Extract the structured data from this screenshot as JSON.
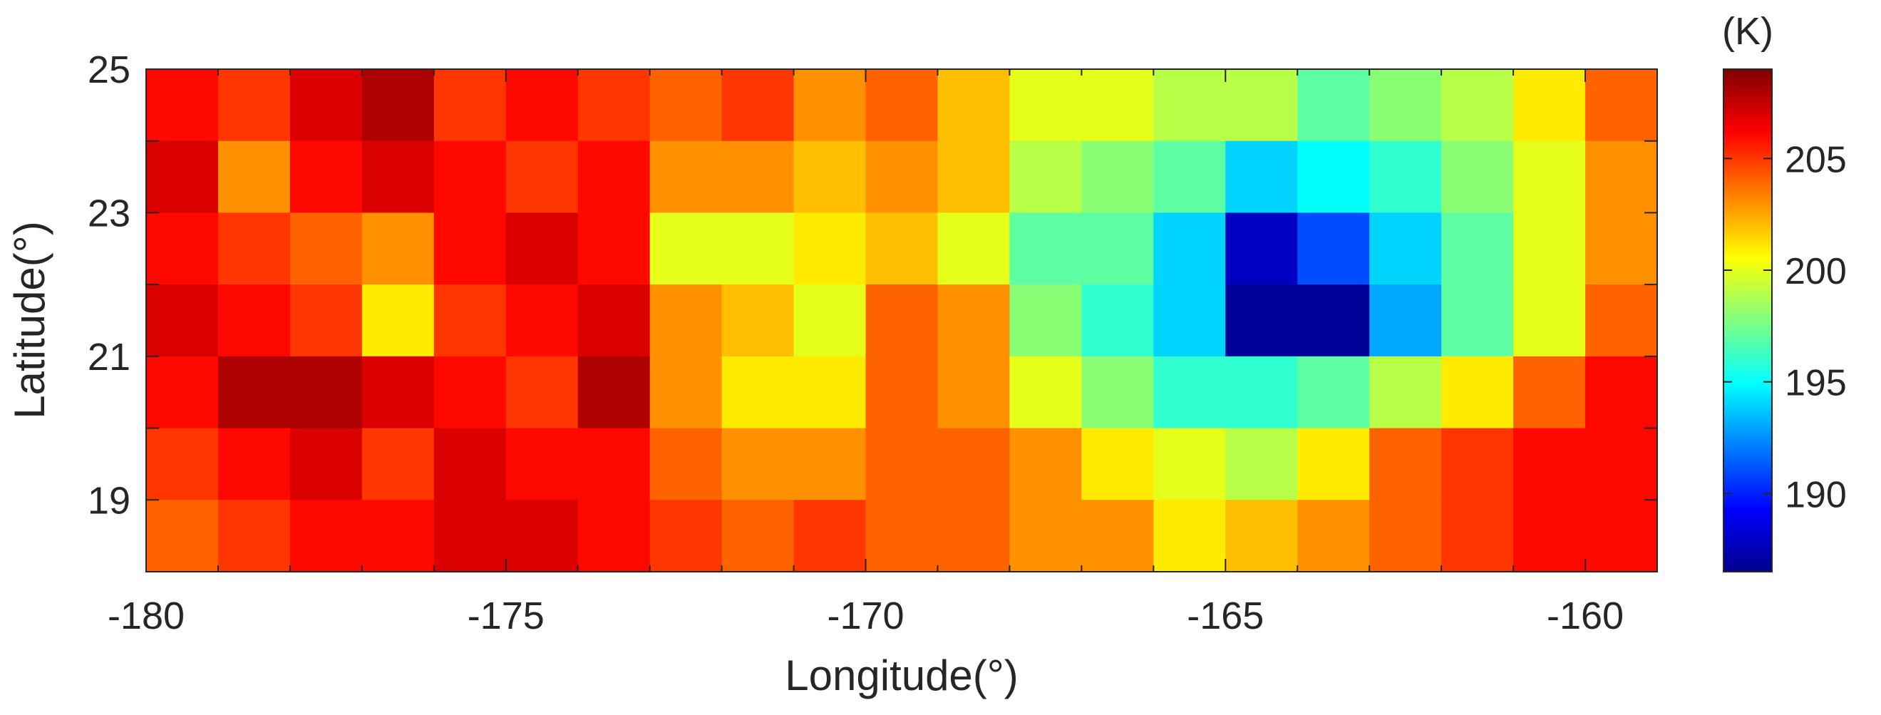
{
  "chart_data": {
    "type": "heatmap",
    "title": "",
    "xlabel": "Longitude(°)",
    "ylabel": "Latitude(°)",
    "xlim": [
      -180,
      -159
    ],
    "ylim": [
      18,
      25
    ],
    "x_ticks": [
      -180,
      -175,
      -170,
      -165,
      -160
    ],
    "x_tick_labels": [
      "-180",
      "-175",
      "-170",
      "-165",
      "-160"
    ],
    "y_ticks": [
      19,
      21,
      23,
      25
    ],
    "y_tick_labels": [
      "19",
      "21",
      "23",
      "25"
    ],
    "colorbar": {
      "label": "(K)",
      "colormap": "jet",
      "range": [
        186.5,
        209
      ],
      "ticks": [
        190,
        195,
        200,
        205
      ],
      "tick_labels": [
        "190",
        "195",
        "200",
        "205"
      ]
    },
    "grid": false,
    "lon": [
      -179.5,
      -178.5,
      -177.5,
      -176.5,
      -175.5,
      -174.5,
      -173.5,
      -172.5,
      -171.5,
      -170.5,
      -169.5,
      -168.5,
      -167.5,
      -166.5,
      -165.5,
      -164.5,
      -163.5,
      -162.5,
      -161.5,
      -160.5,
      -159.5
    ],
    "lat": [
      24.5,
      23.5,
      22.5,
      21.5,
      20.5,
      19.5,
      18.5
    ],
    "values": [
      [
        206,
        205,
        207,
        208,
        205,
        206,
        205,
        204,
        205,
        203,
        204,
        202,
        200,
        200,
        199,
        199,
        197,
        198,
        199,
        201,
        204
      ],
      [
        207,
        203,
        206,
        207,
        206,
        205,
        206,
        203,
        203,
        202,
        203,
        202,
        199,
        198,
        197,
        194,
        195,
        196,
        198,
        200,
        203
      ],
      [
        206,
        205,
        204,
        203,
        206,
        207,
        206,
        200,
        200,
        201,
        202,
        200,
        197,
        197,
        194,
        188,
        191,
        194,
        197,
        200,
        203
      ],
      [
        207,
        206,
        205,
        201,
        205,
        206,
        207,
        203,
        202,
        200,
        204,
        203,
        198,
        196,
        194,
        187,
        187,
        193,
        197,
        200,
        204
      ],
      [
        206,
        208,
        208,
        207,
        206,
        205,
        208,
        203,
        201,
        201,
        204,
        203,
        200,
        198,
        196,
        196,
        197,
        199,
        201,
        204,
        206
      ],
      [
        205,
        206,
        207,
        205,
        207,
        206,
        206,
        204,
        203,
        203,
        204,
        204,
        203,
        201,
        200,
        199,
        201,
        204,
        205,
        206,
        206
      ],
      [
        204,
        205,
        206,
        206,
        207,
        207,
        206,
        205,
        204,
        205,
        204,
        204,
        203,
        203,
        201,
        202,
        203,
        204,
        205,
        206,
        206
      ]
    ]
  }
}
